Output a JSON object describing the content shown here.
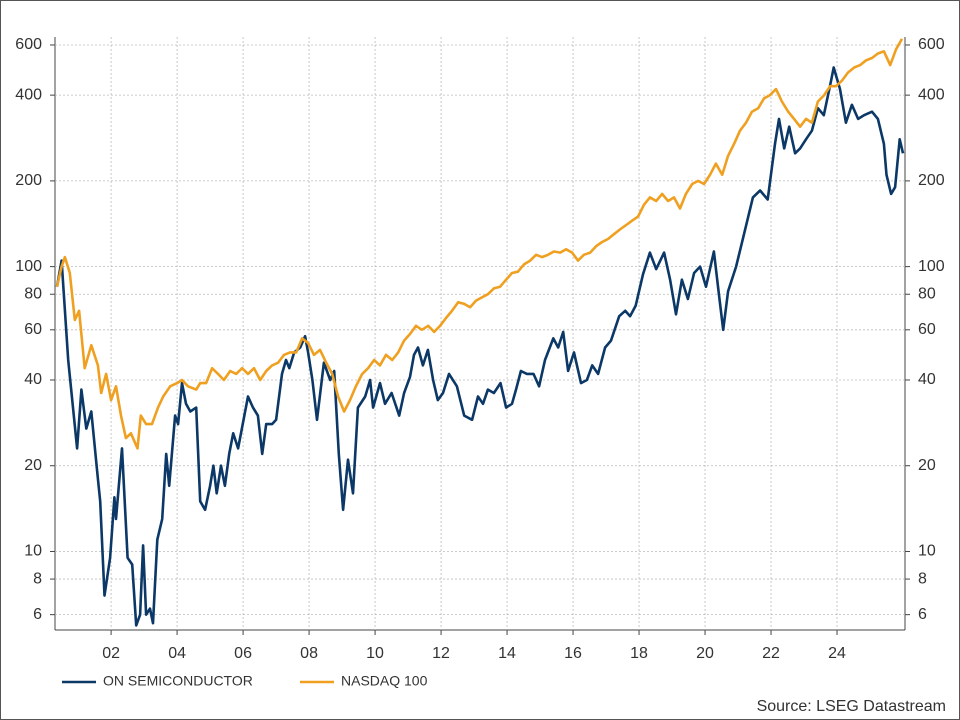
{
  "chart_data": {
    "type": "line",
    "ylog": true,
    "grid": true,
    "source": "Source: LSEG Datastream",
    "xlim": [
      0.3,
      26.06
    ],
    "ylim": [
      5.3,
      640
    ],
    "xticks": [
      {
        "value": 2,
        "label": "02"
      },
      {
        "value": 4,
        "label": "04"
      },
      {
        "value": 6,
        "label": "06"
      },
      {
        "value": 8,
        "label": "08"
      },
      {
        "value": 10,
        "label": "10"
      },
      {
        "value": 12,
        "label": "12"
      },
      {
        "value": 14,
        "label": "14"
      },
      {
        "value": 16,
        "label": "16"
      },
      {
        "value": 18,
        "label": "18"
      },
      {
        "value": 20,
        "label": "20"
      },
      {
        "value": 22,
        "label": "22"
      },
      {
        "value": 24,
        "label": "24"
      }
    ],
    "yticks": [
      6,
      8,
      10,
      20,
      40,
      60,
      80,
      100,
      200,
      400,
      600
    ],
    "series": [
      {
        "name": "ON SEMICONDUCTOR",
        "color": "#0b3866",
        "x": [
          0.36,
          0.5,
          0.7,
          0.97,
          1.1,
          1.25,
          1.4,
          1.6,
          1.67,
          1.8,
          1.97,
          2.1,
          2.15,
          2.33,
          2.5,
          2.64,
          2.76,
          2.88,
          2.97,
          3.06,
          3.18,
          3.27,
          3.4,
          3.55,
          3.67,
          3.76,
          3.94,
          4.03,
          4.15,
          4.27,
          4.4,
          4.58,
          4.7,
          4.85,
          5.0,
          5.1,
          5.2,
          5.33,
          5.45,
          5.58,
          5.7,
          5.85,
          6.15,
          6.3,
          6.45,
          6.58,
          6.7,
          6.88,
          7.0,
          7.18,
          7.3,
          7.4,
          7.55,
          7.73,
          7.88,
          7.97,
          8.1,
          8.24,
          8.45,
          8.64,
          8.76,
          8.9,
          9.03,
          9.18,
          9.33,
          9.48,
          9.7,
          9.85,
          9.94,
          10.15,
          10.3,
          10.5,
          10.73,
          10.88,
          11.06,
          11.18,
          11.3,
          11.45,
          11.6,
          11.76,
          11.9,
          12.06,
          12.24,
          12.48,
          12.7,
          12.94,
          13.12,
          13.27,
          13.42,
          13.6,
          13.8,
          13.97,
          14.15,
          14.27,
          14.42,
          14.6,
          14.8,
          14.97,
          15.15,
          15.4,
          15.55,
          15.7,
          15.85,
          16.03,
          16.24,
          16.42,
          16.58,
          16.76,
          16.97,
          17.15,
          17.4,
          17.58,
          17.73,
          17.9,
          18.12,
          18.33,
          18.52,
          18.76,
          18.94,
          19.12,
          19.3,
          19.48,
          19.67,
          19.85,
          20.03,
          20.27,
          20.42,
          20.55,
          20.7,
          20.94,
          21.18,
          21.45,
          21.67,
          21.9,
          22.12,
          22.24,
          22.4,
          22.55,
          22.73,
          22.88,
          23.06,
          23.24,
          23.42,
          23.6,
          23.82,
          23.9,
          24.09,
          24.27,
          24.45,
          24.64,
          24.82,
          25.06,
          25.24,
          25.42,
          25.5,
          25.64,
          25.76,
          25.9,
          26.0
        ],
        "values": [
          85,
          105,
          47,
          23,
          37,
          27,
          31,
          18,
          15,
          7,
          9.5,
          15.5,
          13,
          23,
          9.5,
          9,
          5.5,
          6,
          10.5,
          6,
          6.3,
          5.6,
          11,
          13,
          22,
          17,
          30,
          28,
          39,
          33,
          31,
          32,
          15,
          14,
          17,
          20,
          16,
          20,
          17,
          22,
          26,
          23,
          35,
          32,
          30,
          22,
          28,
          28,
          29,
          42,
          47,
          44,
          50,
          52,
          57,
          50,
          40,
          29,
          46,
          40,
          43,
          22,
          14,
          21,
          16,
          32,
          35,
          40,
          32,
          39,
          33,
          36,
          30,
          36,
          41,
          49,
          52,
          45,
          51,
          40,
          34,
          36,
          42,
          38,
          30,
          29,
          35,
          33,
          37,
          36,
          39,
          32,
          33,
          37,
          43,
          42,
          42,
          38,
          47,
          56,
          52,
          59,
          43,
          50,
          39,
          40,
          45,
          42,
          52,
          55,
          67,
          70,
          67,
          73,
          94,
          112,
          98,
          112,
          90,
          68,
          90,
          77,
          95,
          100,
          85,
          113,
          80,
          60,
          82,
          100,
          130,
          175,
          185,
          172,
          270,
          330,
          260,
          310,
          250,
          260,
          280,
          300,
          360,
          340,
          450,
          500,
          420,
          320,
          370,
          330,
          340,
          350,
          330,
          270,
          210,
          180,
          190,
          280,
          250
        ]
      },
      {
        "name": "NASDAQ 100",
        "color": "#f0a020",
        "x": [
          0.36,
          0.5,
          0.6,
          0.75,
          0.9,
          1.03,
          1.2,
          1.4,
          1.6,
          1.7,
          1.85,
          2.0,
          2.15,
          2.3,
          2.45,
          2.6,
          2.8,
          2.9,
          3.06,
          3.24,
          3.42,
          3.58,
          3.79,
          4.0,
          4.15,
          4.33,
          4.58,
          4.7,
          4.88,
          5.06,
          5.24,
          5.42,
          5.61,
          5.79,
          5.97,
          6.15,
          6.33,
          6.52,
          6.7,
          6.88,
          7.06,
          7.24,
          7.42,
          7.61,
          7.79,
          7.97,
          8.15,
          8.33,
          8.52,
          8.7,
          8.88,
          9.06,
          9.24,
          9.42,
          9.61,
          9.79,
          9.97,
          10.15,
          10.33,
          10.52,
          10.7,
          10.88,
          11.06,
          11.24,
          11.42,
          11.61,
          11.79,
          11.97,
          12.15,
          12.33,
          12.52,
          12.7,
          12.88,
          13.06,
          13.24,
          13.42,
          13.61,
          13.79,
          13.97,
          14.15,
          14.33,
          14.52,
          14.7,
          14.88,
          15.06,
          15.24,
          15.42,
          15.61,
          15.79,
          15.97,
          16.15,
          16.33,
          16.52,
          16.7,
          16.88,
          17.06,
          17.24,
          17.42,
          17.61,
          17.79,
          17.97,
          18.15,
          18.33,
          18.52,
          18.7,
          18.88,
          19.06,
          19.24,
          19.42,
          19.61,
          19.79,
          19.97,
          20.15,
          20.33,
          20.52,
          20.7,
          20.88,
          21.06,
          21.24,
          21.42,
          21.61,
          21.79,
          21.97,
          22.15,
          22.33,
          22.52,
          22.7,
          22.88,
          23.06,
          23.24,
          23.42,
          23.61,
          23.79,
          23.97,
          24.15,
          24.33,
          24.52,
          24.7,
          24.88,
          25.06,
          25.24,
          25.42,
          25.61,
          25.79,
          25.97
        ],
        "values": [
          85,
          100,
          108,
          95,
          65,
          70,
          44,
          53,
          45,
          36,
          42,
          34,
          38,
          30,
          25,
          26,
          23,
          30,
          28,
          28,
          32,
          35,
          38,
          39,
          40,
          38,
          37,
          39,
          39,
          44,
          42,
          40,
          43,
          42,
          44,
          42,
          44,
          40,
          43,
          45,
          46,
          49,
          50,
          50,
          56,
          54,
          49,
          51,
          46,
          42,
          35,
          31,
          34,
          38,
          42,
          44,
          47,
          45,
          49,
          47,
          50,
          55,
          58,
          62,
          60,
          62,
          59,
          62,
          66,
          70,
          75,
          74,
          72,
          76,
          78,
          80,
          84,
          85,
          90,
          95,
          96,
          102,
          105,
          110,
          108,
          110,
          113,
          112,
          115,
          112,
          105,
          110,
          112,
          118,
          122,
          125,
          130,
          135,
          140,
          145,
          150,
          165,
          175,
          170,
          180,
          170,
          175,
          160,
          180,
          195,
          200,
          195,
          210,
          230,
          210,
          245,
          270,
          300,
          320,
          350,
          360,
          390,
          400,
          420,
          380,
          350,
          330,
          310,
          330,
          320,
          380,
          400,
          430,
          430,
          450,
          480,
          500,
          510,
          530,
          540,
          560,
          570,
          510,
          580,
          630
        ]
      }
    ]
  }
}
